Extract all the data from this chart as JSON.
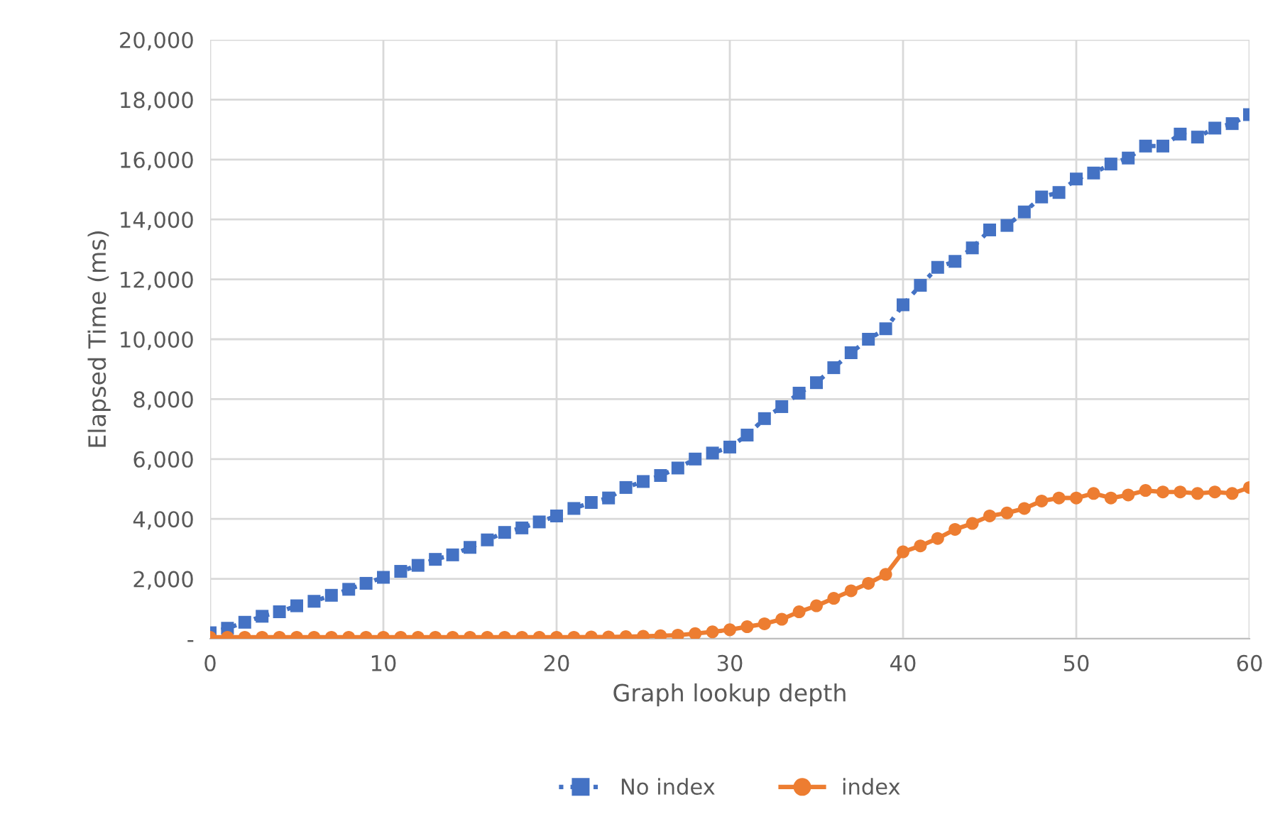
{
  "chart_data": {
    "type": "line",
    "xlabel": "Graph lookup depth",
    "ylabel": "Elapsed Time (ms)",
    "x": [
      0,
      1,
      2,
      3,
      4,
      5,
      6,
      7,
      8,
      9,
      10,
      11,
      12,
      13,
      14,
      15,
      16,
      17,
      18,
      19,
      20,
      21,
      22,
      23,
      24,
      25,
      26,
      27,
      28,
      29,
      30,
      31,
      32,
      33,
      34,
      35,
      36,
      37,
      38,
      39,
      40,
      41,
      42,
      43,
      44,
      45,
      46,
      47,
      48,
      49,
      50,
      51,
      52,
      53,
      54,
      55,
      56,
      57,
      58,
      59,
      60
    ],
    "xlim": [
      0,
      60
    ],
    "xticks": [
      0,
      10,
      20,
      30,
      40,
      50,
      60
    ],
    "ylim": [
      0,
      20000
    ],
    "yticks": [
      {
        "value": 0,
        "label": "-"
      },
      {
        "value": 2000,
        "label": "2,000"
      },
      {
        "value": 4000,
        "label": "4,000"
      },
      {
        "value": 6000,
        "label": "6,000"
      },
      {
        "value": 8000,
        "label": "8,000"
      },
      {
        "value": 10000,
        "label": "10,000"
      },
      {
        "value": 12000,
        "label": "12,000"
      },
      {
        "value": 14000,
        "label": "14,000"
      },
      {
        "value": 16000,
        "label": "16,000"
      },
      {
        "value": 18000,
        "label": "18,000"
      },
      {
        "value": 20000,
        "label": "20,000"
      }
    ],
    "grid": true,
    "legend": "bottom",
    "series": [
      {
        "name": "No index",
        "color": "#4472c4",
        "marker": "square",
        "line_style": "dotted",
        "values": [
          200,
          350,
          550,
          750,
          900,
          1100,
          1250,
          1450,
          1650,
          1850,
          2050,
          2250,
          2450,
          2650,
          2800,
          3050,
          3300,
          3550,
          3700,
          3900,
          4100,
          4350,
          4550,
          4700,
          5050,
          5250,
          5450,
          5700,
          6000,
          6200,
          6400,
          6800,
          7350,
          7750,
          8200,
          8550,
          9050,
          9550,
          10000,
          10350,
          11150,
          11800,
          12400,
          12600,
          13050,
          13650,
          13800,
          14250,
          14750,
          14900,
          15350,
          15550,
          15850,
          16050,
          16450,
          16450,
          16850,
          16750,
          17050,
          17200,
          17500
        ]
      },
      {
        "name": "index",
        "color": "#ed7d31",
        "marker": "circle",
        "line_style": "solid",
        "values": [
          50,
          50,
          50,
          50,
          50,
          50,
          50,
          50,
          50,
          50,
          50,
          50,
          50,
          50,
          50,
          50,
          50,
          50,
          50,
          50,
          50,
          50,
          60,
          60,
          70,
          80,
          100,
          120,
          170,
          230,
          300,
          400,
          500,
          650,
          900,
          1100,
          1350,
          1600,
          1850,
          2150,
          2900,
          3100,
          3350,
          3650,
          3850,
          4100,
          4200,
          4350,
          4600,
          4700,
          4700,
          4850,
          4700,
          4800,
          4950,
          4900,
          4900,
          4850,
          4900,
          4850,
          5050
        ]
      }
    ]
  }
}
